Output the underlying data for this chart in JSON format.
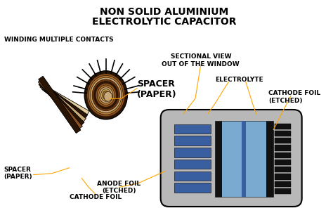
{
  "title_line1": "NON SOLID ALUMINIUM",
  "title_line2": "ELECTROLYTIC CAPACITOR",
  "label_winding": "WINDING MULTIPLE CONTACTS",
  "label_spacer_paper_big": "SPACER\n(PAPER)",
  "label_sectional": "SECTIONAL VIEW\nOUT OF THE WINDOW",
  "label_electrolyte": "ELECTROLYTE",
  "label_cathode_foil_etched": "CATHODE FOIL\n(ETCHED)",
  "label_spacer_paper_small": "SPACER\n(PAPER)",
  "label_anode_foil": "ANODE FOIL\n(ETCHED)",
  "label_cathode_foil": "CATHODE FOIL",
  "bg_color": "#ffffff",
  "title_fontsize": 10,
  "label_fontsize": 7,
  "arrow_color": "#FFA500",
  "section_bg": "#b8b8b8",
  "blue_dark": "#3a5fa0",
  "blue_light": "#7aaad0",
  "dark_color": "#111111",
  "brown_dark": "#2a1505",
  "brown_mid": "#6b3510",
  "brown_mid2": "#8b5020",
  "brown_light": "#b07830",
  "tan_color": "#c8a878",
  "cream_color": "#e8d0a0"
}
